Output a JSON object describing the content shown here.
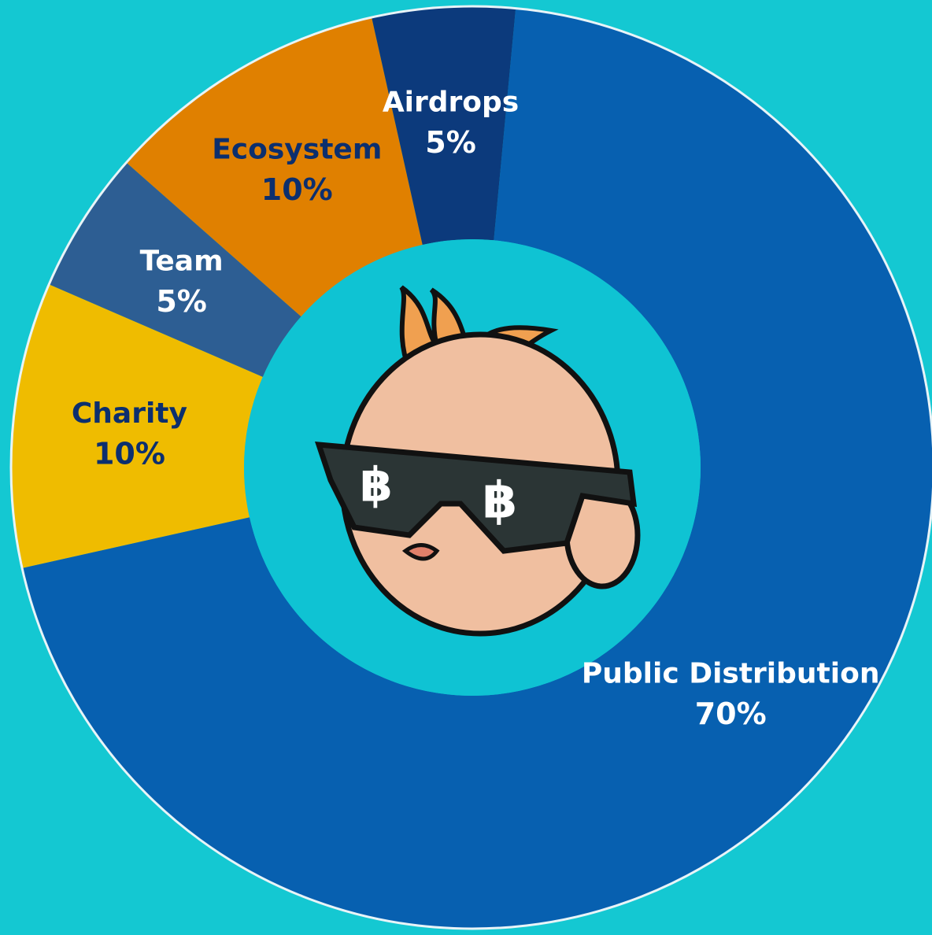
{
  "chart_data": {
    "type": "pie",
    "donut": true,
    "categories": [
      "Public Distribution",
      "Charity",
      "Team",
      "Ecosystem",
      "Airdrops"
    ],
    "values": [
      70,
      10,
      5,
      10,
      5
    ],
    "value_labels": [
      "70%",
      "10%",
      "5%",
      "10%",
      "5%"
    ],
    "colors": [
      "#0760b0",
      "#efbc00",
      "#2d5e93",
      "#e08000",
      "#0c3a7c"
    ]
  }
}
